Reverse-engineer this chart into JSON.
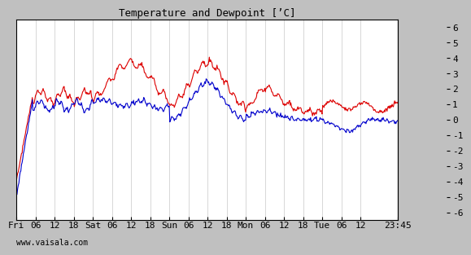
{
  "title": "Temperature and Dewpoint [’C]",
  "yticks": [
    -6,
    -5,
    -4,
    -3,
    -2,
    -1,
    0,
    1,
    2,
    3,
    4,
    5,
    6
  ],
  "ylim": [
    -6.5,
    6.5
  ],
  "xtick_labels": [
    "Fri",
    "06",
    "12",
    "18",
    "Sat",
    "06",
    "12",
    "18",
    "Sun",
    "06",
    "12",
    "18",
    "Mon",
    "06",
    "12",
    "18",
    "Tue",
    "06",
    "12",
    "23:45"
  ],
  "watermark": "www.vaisala.com",
  "bg_color": "#c0c0c0",
  "plot_bg": "#ffffff",
  "grid_color": "#c8c8c8",
  "temp_color": "#dd0000",
  "dew_color": "#0000cc",
  "line_width": 0.8,
  "n_points": 600,
  "title_fontsize": 9,
  "tick_fontsize": 8,
  "font_family": "monospace"
}
